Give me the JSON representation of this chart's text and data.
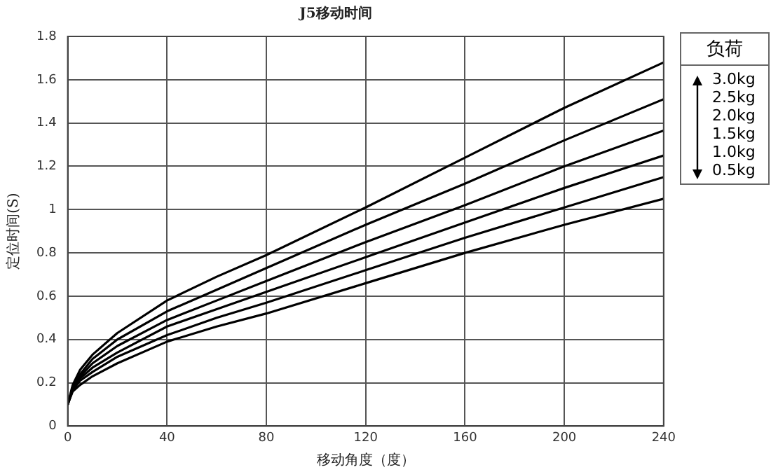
{
  "chart_data": {
    "type": "line",
    "title": "J5移动时间",
    "xlabel": "移动角度（度）",
    "ylabel": "定位时间(S)",
    "legend_title": "负荷",
    "x": [
      0,
      2,
      5,
      10,
      20,
      40,
      60,
      80,
      120,
      160,
      200,
      240
    ],
    "series": [
      {
        "name": "3.0kg",
        "color": "#000000",
        "values": [
          0.1,
          0.19,
          0.26,
          0.33,
          0.43,
          0.58,
          0.69,
          0.79,
          1.01,
          1.24,
          1.47,
          1.68
        ]
      },
      {
        "name": "2.5kg",
        "color": "#000000",
        "values": [
          0.1,
          0.18,
          0.24,
          0.31,
          0.4,
          0.53,
          0.63,
          0.73,
          0.93,
          1.12,
          1.32,
          1.51
        ]
      },
      {
        "name": "2.0kg",
        "color": "#000000",
        "values": [
          0.1,
          0.175,
          0.23,
          0.29,
          0.37,
          0.49,
          0.58,
          0.67,
          0.85,
          1.02,
          1.2,
          1.365
        ]
      },
      {
        "name": "1.5kg",
        "color": "#000000",
        "values": [
          0.1,
          0.17,
          0.22,
          0.27,
          0.34,
          0.46,
          0.54,
          0.62,
          0.78,
          0.94,
          1.1,
          1.25
        ]
      },
      {
        "name": "1.0kg",
        "color": "#000000",
        "values": [
          0.1,
          0.165,
          0.21,
          0.25,
          0.32,
          0.42,
          0.5,
          0.57,
          0.72,
          0.87,
          1.01,
          1.15
        ]
      },
      {
        "name": "0.5kg",
        "color": "#000000",
        "values": [
          0.1,
          0.16,
          0.19,
          0.23,
          0.29,
          0.39,
          0.46,
          0.52,
          0.66,
          0.8,
          0.93,
          1.05
        ]
      }
    ],
    "xlim": [
      0,
      240
    ],
    "xticks": [
      0,
      40,
      80,
      120,
      160,
      200,
      240
    ],
    "ylim": [
      0,
      1.8
    ],
    "yticks": [
      0,
      0.2,
      0.4,
      0.6,
      0.8,
      1,
      1.2,
      1.4,
      1.6,
      1.8
    ],
    "grid": true,
    "legend": "right",
    "marker": "none",
    "line_style": "solid"
  }
}
